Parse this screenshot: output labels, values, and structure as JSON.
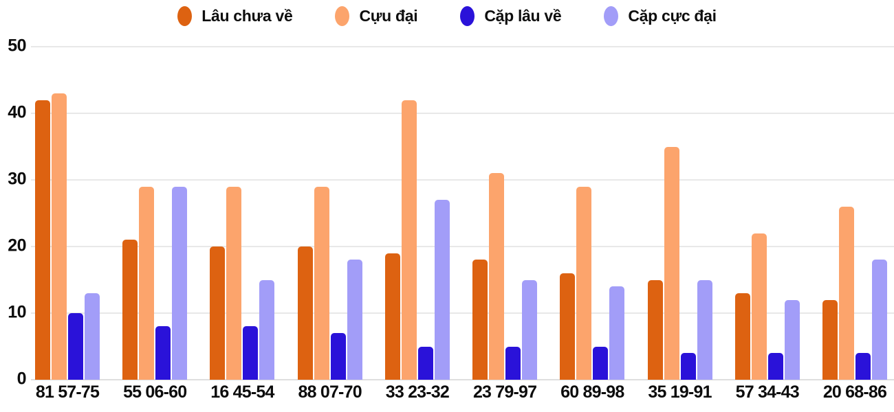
{
  "chart_data": {
    "type": "bar",
    "title": "",
    "categories": [
      "81 57-75",
      "55 06-60",
      "16 45-54",
      "88 07-70",
      "33 23-32",
      "23 79-97",
      "60 89-98",
      "35 19-91",
      "57 34-43",
      "20 68-86"
    ],
    "series": [
      {
        "name": "Lâu chưa về",
        "color": "#dd6211",
        "values": [
          42,
          21,
          20,
          20,
          19,
          18,
          16,
          15,
          13,
          12
        ]
      },
      {
        "name": "Cựu đại",
        "color": "#fca46c",
        "values": [
          43,
          29,
          29,
          29,
          42,
          31,
          29,
          35,
          22,
          26
        ]
      },
      {
        "name": "Cặp lâu về",
        "color": "#2a12d9",
        "values": [
          10,
          8,
          8,
          7,
          5,
          5,
          5,
          4,
          4,
          4
        ]
      },
      {
        "name": "Cặp cực đại",
        "color": "#a29df8",
        "values": [
          13,
          29,
          15,
          18,
          27,
          15,
          14,
          15,
          12,
          18
        ]
      }
    ],
    "xlabel": "",
    "ylabel": "",
    "ylim": [
      0,
      50
    ],
    "yticks": [
      0,
      10,
      20,
      30,
      40,
      50
    ],
    "grid": true,
    "grid_color": "#e8e8e8",
    "axis_text_color": "#0c0c0c",
    "legend_position": "top",
    "background": "#ffffff"
  }
}
